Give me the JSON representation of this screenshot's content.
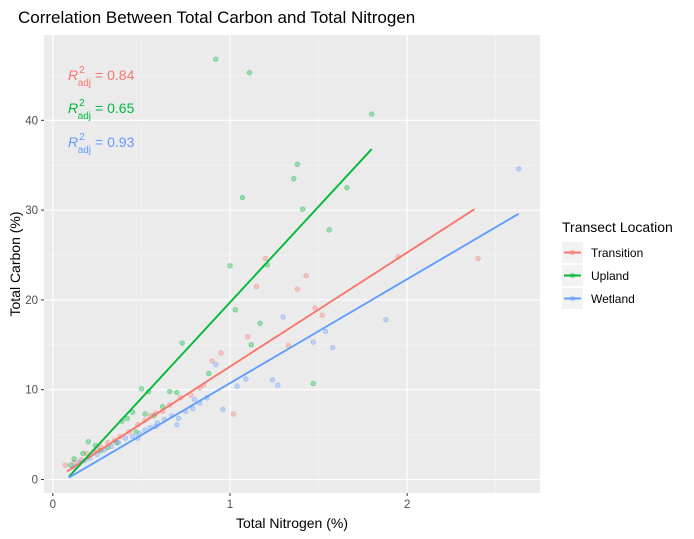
{
  "chart_data": {
    "type": "scatter",
    "title": "Correlation Between Total Carbon and Total Nitrogen",
    "xlabel": "Total Nitrogen (%)",
    "ylabel": "Total Carbon (%)",
    "xlim": [
      -0.05,
      2.75
    ],
    "ylim": [
      -1.5,
      49.5
    ],
    "x_ticks": [
      0,
      1,
      2
    ],
    "x_tick_labels": [
      "0",
      "1",
      "2"
    ],
    "y_ticks": [
      0,
      10,
      20,
      30,
      40
    ],
    "y_tick_labels": [
      "0",
      "10",
      "20",
      "30",
      "40"
    ],
    "grid": true,
    "legend": {
      "title": "Transect Location",
      "placement": "right"
    },
    "annotations": [
      {
        "symbol": "R",
        "superscript": "2",
        "subscript": "adj",
        "value": "= 0.84",
        "color": "#F8766D"
      },
      {
        "symbol": "R",
        "superscript": "2",
        "subscript": "adj",
        "value": "= 0.65",
        "color": "#00BA38"
      },
      {
        "symbol": "R",
        "superscript": "2",
        "subscript": "adj",
        "value": "= 0.93",
        "color": "#619CFF"
      }
    ],
    "series": [
      {
        "name": "Transition",
        "color": "#F8766D",
        "fit": {
          "x": [
            0.08,
            2.38
          ],
          "y": [
            0.9,
            30.1
          ]
        },
        "points": [
          [
            0.07,
            1.6
          ],
          [
            0.12,
            1.9
          ],
          [
            0.16,
            2.2
          ],
          [
            0.19,
            2.9
          ],
          [
            0.23,
            3.1
          ],
          [
            0.27,
            3.6
          ],
          [
            0.31,
            4.1
          ],
          [
            0.35,
            4.4
          ],
          [
            0.38,
            4.8
          ],
          [
            0.43,
            5.3
          ],
          [
            0.48,
            6.1
          ],
          [
            0.52,
            6.6
          ],
          [
            0.58,
            7.4
          ],
          [
            0.62,
            7.6
          ],
          [
            0.66,
            8.3
          ],
          [
            0.72,
            9.1
          ],
          [
            0.78,
            9.4
          ],
          [
            0.83,
            10.2
          ],
          [
            0.9,
            13.2
          ],
          [
            0.95,
            14.1
          ],
          [
            1.02,
            7.3
          ],
          [
            1.1,
            15.9
          ],
          [
            1.15,
            21.5
          ],
          [
            1.2,
            24.6
          ],
          [
            1.33,
            14.9
          ],
          [
            1.38,
            21.2
          ],
          [
            1.43,
            22.7
          ],
          [
            1.48,
            19.1
          ],
          [
            1.52,
            18.3
          ],
          [
            1.95,
            24.8
          ],
          [
            2.4,
            24.6
          ],
          [
            0.25,
            3.3
          ],
          [
            0.55,
            7.1
          ],
          [
            0.85,
            10.5
          ]
        ]
      },
      {
        "name": "Upland",
        "color": "#00BA38",
        "fit": {
          "x": [
            0.09,
            1.8
          ],
          "y": [
            0.3,
            36.8
          ]
        },
        "points": [
          [
            0.1,
            1.6
          ],
          [
            0.12,
            2.3
          ],
          [
            0.17,
            2.9
          ],
          [
            0.2,
            4.2
          ],
          [
            0.24,
            3.8
          ],
          [
            0.27,
            3.2
          ],
          [
            0.31,
            3.6
          ],
          [
            0.36,
            4.1
          ],
          [
            0.39,
            6.5
          ],
          [
            0.42,
            6.8
          ],
          [
            0.47,
            5.3
          ],
          [
            0.5,
            10.1
          ],
          [
            0.54,
            9.8
          ],
          [
            0.57,
            7.1
          ],
          [
            0.62,
            8.1
          ],
          [
            0.66,
            9.8
          ],
          [
            0.7,
            9.7
          ],
          [
            0.73,
            15.2
          ],
          [
            0.88,
            11.8
          ],
          [
            0.92,
            46.8
          ],
          [
            1.0,
            23.8
          ],
          [
            1.03,
            18.9
          ],
          [
            1.07,
            31.4
          ],
          [
            1.11,
            45.3
          ],
          [
            1.12,
            15.0
          ],
          [
            1.17,
            17.4
          ],
          [
            1.21,
            23.9
          ],
          [
            1.36,
            33.5
          ],
          [
            1.38,
            35.1
          ],
          [
            1.41,
            30.1
          ],
          [
            1.47,
            10.7
          ],
          [
            1.56,
            27.8
          ],
          [
            1.66,
            32.5
          ],
          [
            1.8,
            40.7
          ],
          [
            0.52,
            7.3
          ],
          [
            0.45,
            7.5
          ]
        ]
      },
      {
        "name": "Wetland",
        "color": "#619CFF",
        "fit": {
          "x": [
            0.09,
            2.63
          ],
          "y": [
            0.2,
            29.6
          ]
        },
        "points": [
          [
            0.12,
            1.4
          ],
          [
            0.15,
            1.9
          ],
          [
            0.18,
            2.1
          ],
          [
            0.21,
            2.4
          ],
          [
            0.25,
            2.8
          ],
          [
            0.29,
            3.3
          ],
          [
            0.33,
            3.7
          ],
          [
            0.37,
            4.1
          ],
          [
            0.41,
            4.6
          ],
          [
            0.45,
            4.8
          ],
          [
            0.49,
            5.1
          ],
          [
            0.52,
            5.5
          ],
          [
            0.55,
            5.8
          ],
          [
            0.59,
            6.3
          ],
          [
            0.63,
            6.7
          ],
          [
            0.67,
            7.1
          ],
          [
            0.71,
            6.8
          ],
          [
            0.75,
            7.6
          ],
          [
            0.79,
            7.9
          ],
          [
            0.83,
            8.5
          ],
          [
            0.87,
            9.1
          ],
          [
            0.92,
            12.8
          ],
          [
            0.96,
            7.8
          ],
          [
            1.04,
            10.4
          ],
          [
            1.09,
            11.2
          ],
          [
            1.24,
            11.1
          ],
          [
            1.27,
            10.5
          ],
          [
            1.3,
            18.1
          ],
          [
            1.47,
            15.3
          ],
          [
            1.54,
            16.5
          ],
          [
            1.58,
            14.7
          ],
          [
            1.88,
            17.8
          ],
          [
            2.63,
            34.6
          ],
          [
            0.48,
            4.6
          ],
          [
            0.58,
            5.9
          ],
          [
            0.7,
            6.1
          ],
          [
            0.8,
            8.9
          ]
        ]
      }
    ]
  }
}
